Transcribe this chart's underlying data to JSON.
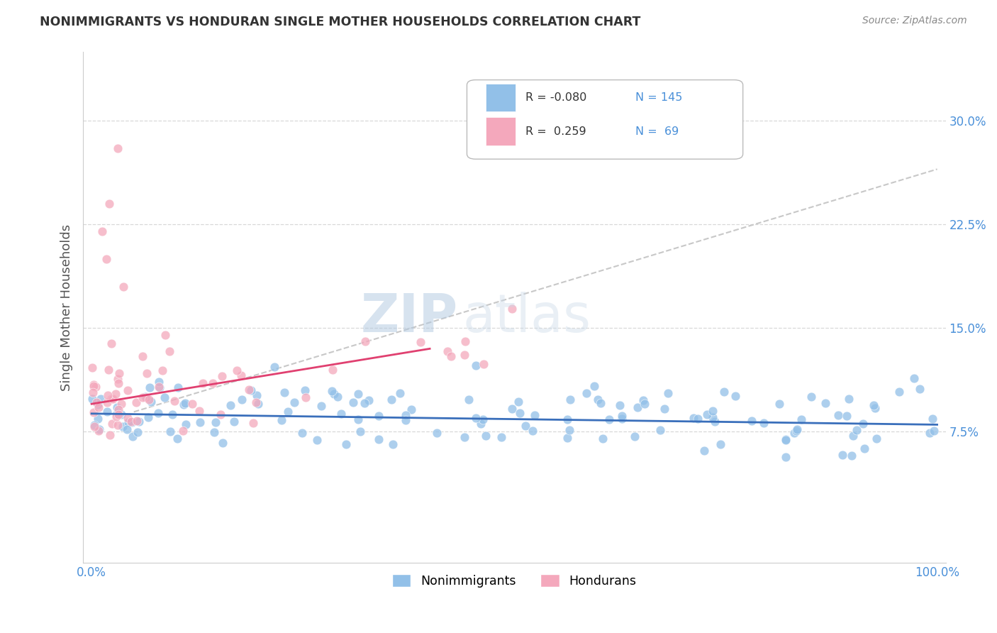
{
  "title": "NONIMMIGRANTS VS HONDURAN SINGLE MOTHER HOUSEHOLDS CORRELATION CHART",
  "source": "Source: ZipAtlas.com",
  "ylabel": "Single Mother Households",
  "xlabel": "",
  "watermark_zip": "ZIP",
  "watermark_atlas": "atlas",
  "xlim": [
    -1,
    101
  ],
  "ylim": [
    -2,
    35
  ],
  "yticks": [
    7.5,
    15.0,
    22.5,
    30.0
  ],
  "xtick_labels": [
    "0.0%",
    "100.0%"
  ],
  "ytick_labels": [
    "7.5%",
    "15.0%",
    "22.5%",
    "30.0%"
  ],
  "blue_color": "#92c0e8",
  "pink_color": "#f4a8bc",
  "blue_line_color": "#3a6fbb",
  "pink_line_color": "#e04070",
  "gray_dash_color": "#c8c8c8",
  "R_blue": -0.08,
  "N_blue": 145,
  "R_pink": 0.259,
  "N_pink": 69,
  "legend_N_color": "#4a90d9",
  "grid_color": "#d8d8d8",
  "axis_color": "#cccccc",
  "title_color": "#333333",
  "source_color": "#888888",
  "ylabel_color": "#555555",
  "tick_color": "#4a90d9",
  "background_color": "#ffffff"
}
